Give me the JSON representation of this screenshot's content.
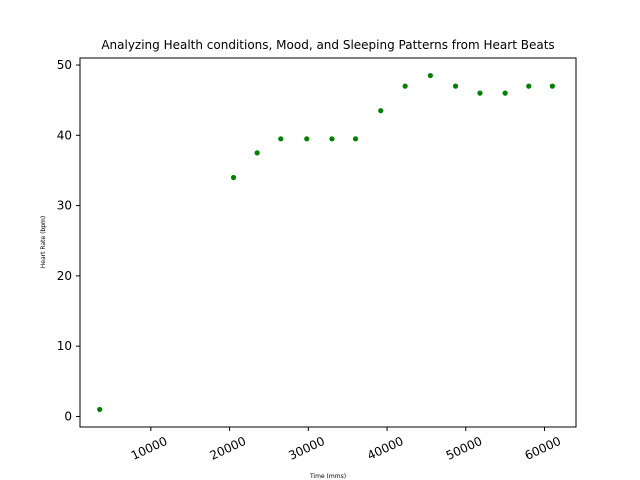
{
  "chart_data": {
    "type": "scatter",
    "title": "Analyzing Health conditions, Mood, and Sleeping Patterns from Heart Beats",
    "xlabel": "Time (mms)",
    "ylabel": "Heart Rate (bpm)",
    "xlim": [
      1000,
      64000
    ],
    "ylim": [
      -1.5,
      51
    ],
    "xticks": [
      10000,
      20000,
      30000,
      40000,
      50000,
      60000
    ],
    "yticks": [
      0,
      10,
      20,
      30,
      40,
      50
    ],
    "xtick_rotation": 25,
    "marker_color": "#008000",
    "grid": false,
    "points": [
      {
        "x": 3500,
        "y": 1
      },
      {
        "x": 20500,
        "y": 34
      },
      {
        "x": 23500,
        "y": 37.5
      },
      {
        "x": 26500,
        "y": 39.5
      },
      {
        "x": 29800,
        "y": 39.5
      },
      {
        "x": 33000,
        "y": 39.5
      },
      {
        "x": 36000,
        "y": 39.5
      },
      {
        "x": 39200,
        "y": 43.5
      },
      {
        "x": 42300,
        "y": 47
      },
      {
        "x": 45500,
        "y": 48.5
      },
      {
        "x": 48700,
        "y": 47
      },
      {
        "x": 51800,
        "y": 46
      },
      {
        "x": 55000,
        "y": 46
      },
      {
        "x": 58000,
        "y": 47
      },
      {
        "x": 61000,
        "y": 47
      }
    ]
  }
}
